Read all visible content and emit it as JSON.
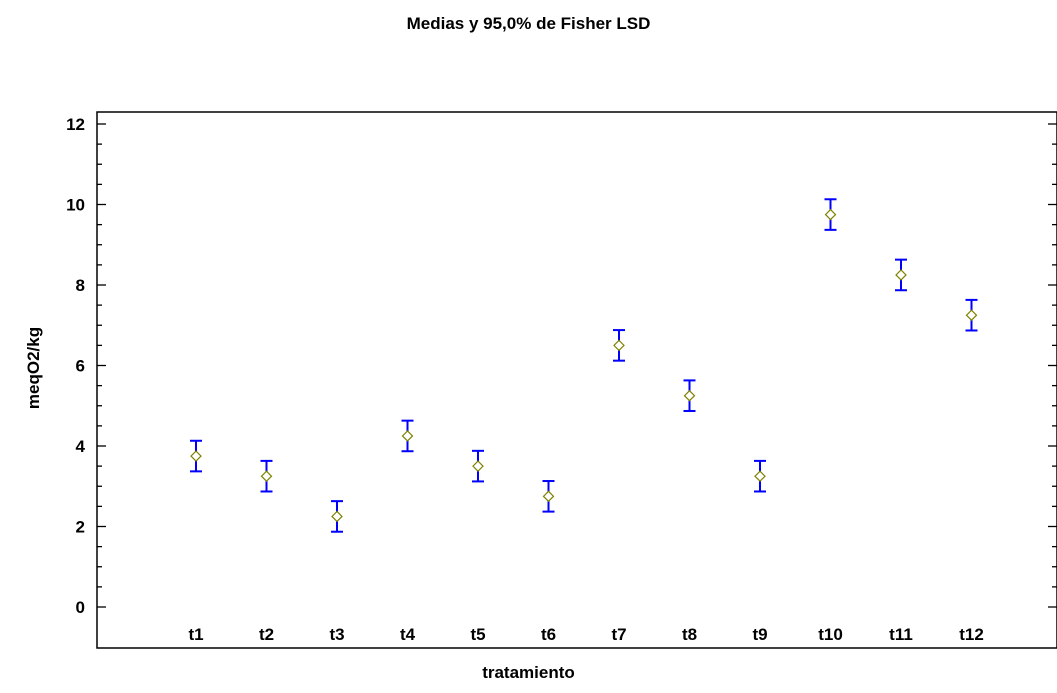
{
  "chart_data": {
    "type": "scatter",
    "title": "Medias y 95,0% de Fisher LSD",
    "xlabel": "tratamiento",
    "ylabel": "meqO2/kg",
    "ylim": [
      0,
      12
    ],
    "yticks": [
      "0",
      "2",
      "4",
      "6",
      "8",
      "10",
      "12"
    ],
    "categories": [
      "t1",
      "t2",
      "t3",
      "t4",
      "t5",
      "t6",
      "t7",
      "t8",
      "t9",
      "t10",
      "t11",
      "t12"
    ],
    "means": [
      3.75,
      3.25,
      2.25,
      4.25,
      3.5,
      2.75,
      6.5,
      5.25,
      3.25,
      9.75,
      8.25,
      7.25
    ],
    "half_width": 0.38,
    "errorbar_color": "#0000ff",
    "marker_color": "#808000",
    "grid": false
  }
}
